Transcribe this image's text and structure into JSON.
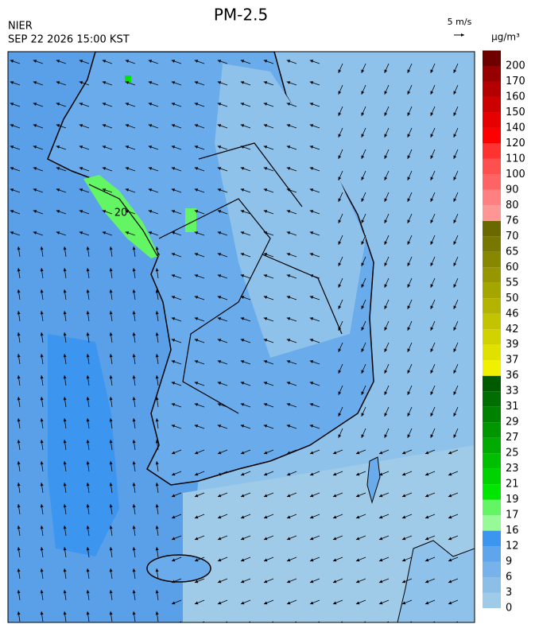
{
  "header": {
    "title": "PM-2.5",
    "agency": "NIER",
    "datetime": "SEP 22 2026 15:00 KST"
  },
  "wind_scale": {
    "label": "5 m/s"
  },
  "map": {
    "contour_label": "20"
  },
  "colorbar": {
    "unit": "μg/m³",
    "ticks": [
      0,
      3,
      6,
      9,
      12,
      16,
      17,
      19,
      21,
      23,
      25,
      27,
      29,
      31,
      33,
      36,
      37,
      39,
      42,
      46,
      50,
      55,
      60,
      65,
      70,
      76,
      80,
      90,
      100,
      110,
      120,
      140,
      150,
      160,
      170,
      200
    ],
    "colors": [
      "#a0cbe8",
      "#8cbfe8",
      "#78b2ea",
      "#5fa5ec",
      "#3c96f0",
      "#96fa96",
      "#64f564",
      "#00e600",
      "#00d200",
      "#00be00",
      "#00aa00",
      "#009600",
      "#008200",
      "#006e00",
      "#005a00",
      "#f0f000",
      "#e1e100",
      "#d2d200",
      "#c3c300",
      "#b4b400",
      "#a5a500",
      "#969600",
      "#878700",
      "#787800",
      "#696900",
      "#ff9696",
      "#ff8080",
      "#ff6464",
      "#ff5050",
      "#ff3232",
      "#ff0000",
      "#e60000",
      "#cd0000",
      "#b40000",
      "#960000",
      "#6e0000"
    ]
  }
}
